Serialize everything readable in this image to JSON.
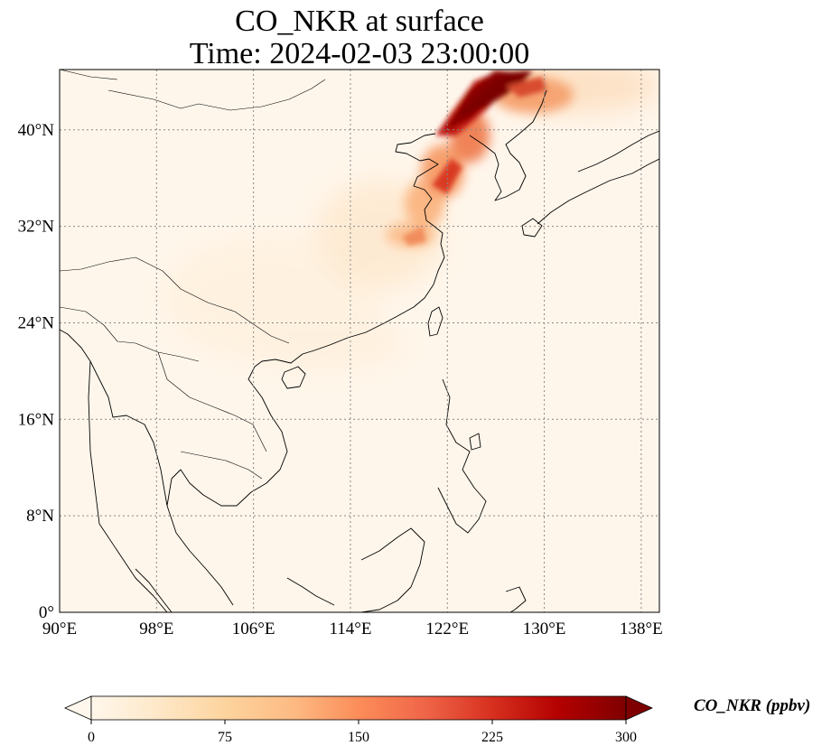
{
  "title": {
    "line1": "CO_NKR at surface",
    "line2": "Time: 2024-02-03 23:00:00"
  },
  "map": {
    "region": "East Asia / Southeast Asia",
    "lon_range": [
      90,
      139.5
    ],
    "lat_range": [
      0,
      45
    ],
    "lon_ticks": [
      90,
      98,
      106,
      114,
      122,
      130,
      138
    ],
    "lon_tick_labels": [
      "90°E",
      "98°E",
      "106°E",
      "114°E",
      "122°E",
      "130°E",
      "138°E"
    ],
    "lat_ticks": [
      0,
      8,
      16,
      24,
      32,
      40
    ],
    "lat_tick_labels": [
      "0°",
      "8°N",
      "16°N",
      "24°N",
      "32°N",
      "40°N"
    ],
    "gridlines": true
  },
  "colorbar": {
    "label": "CO_NKR (ppbv)",
    "min": 0,
    "max": 300,
    "extend": "both",
    "ticks": [
      0,
      75,
      150,
      225,
      300
    ],
    "tick_labels": [
      "0",
      "75",
      "150",
      "225",
      "300"
    ],
    "colormap": "OrRd",
    "colors": [
      "#fff7ec",
      "#fee8c8",
      "#fdd49e",
      "#fdbb84",
      "#fc8d59",
      "#ef6548",
      "#d7301f",
      "#b30000",
      "#7f0000"
    ]
  }
}
